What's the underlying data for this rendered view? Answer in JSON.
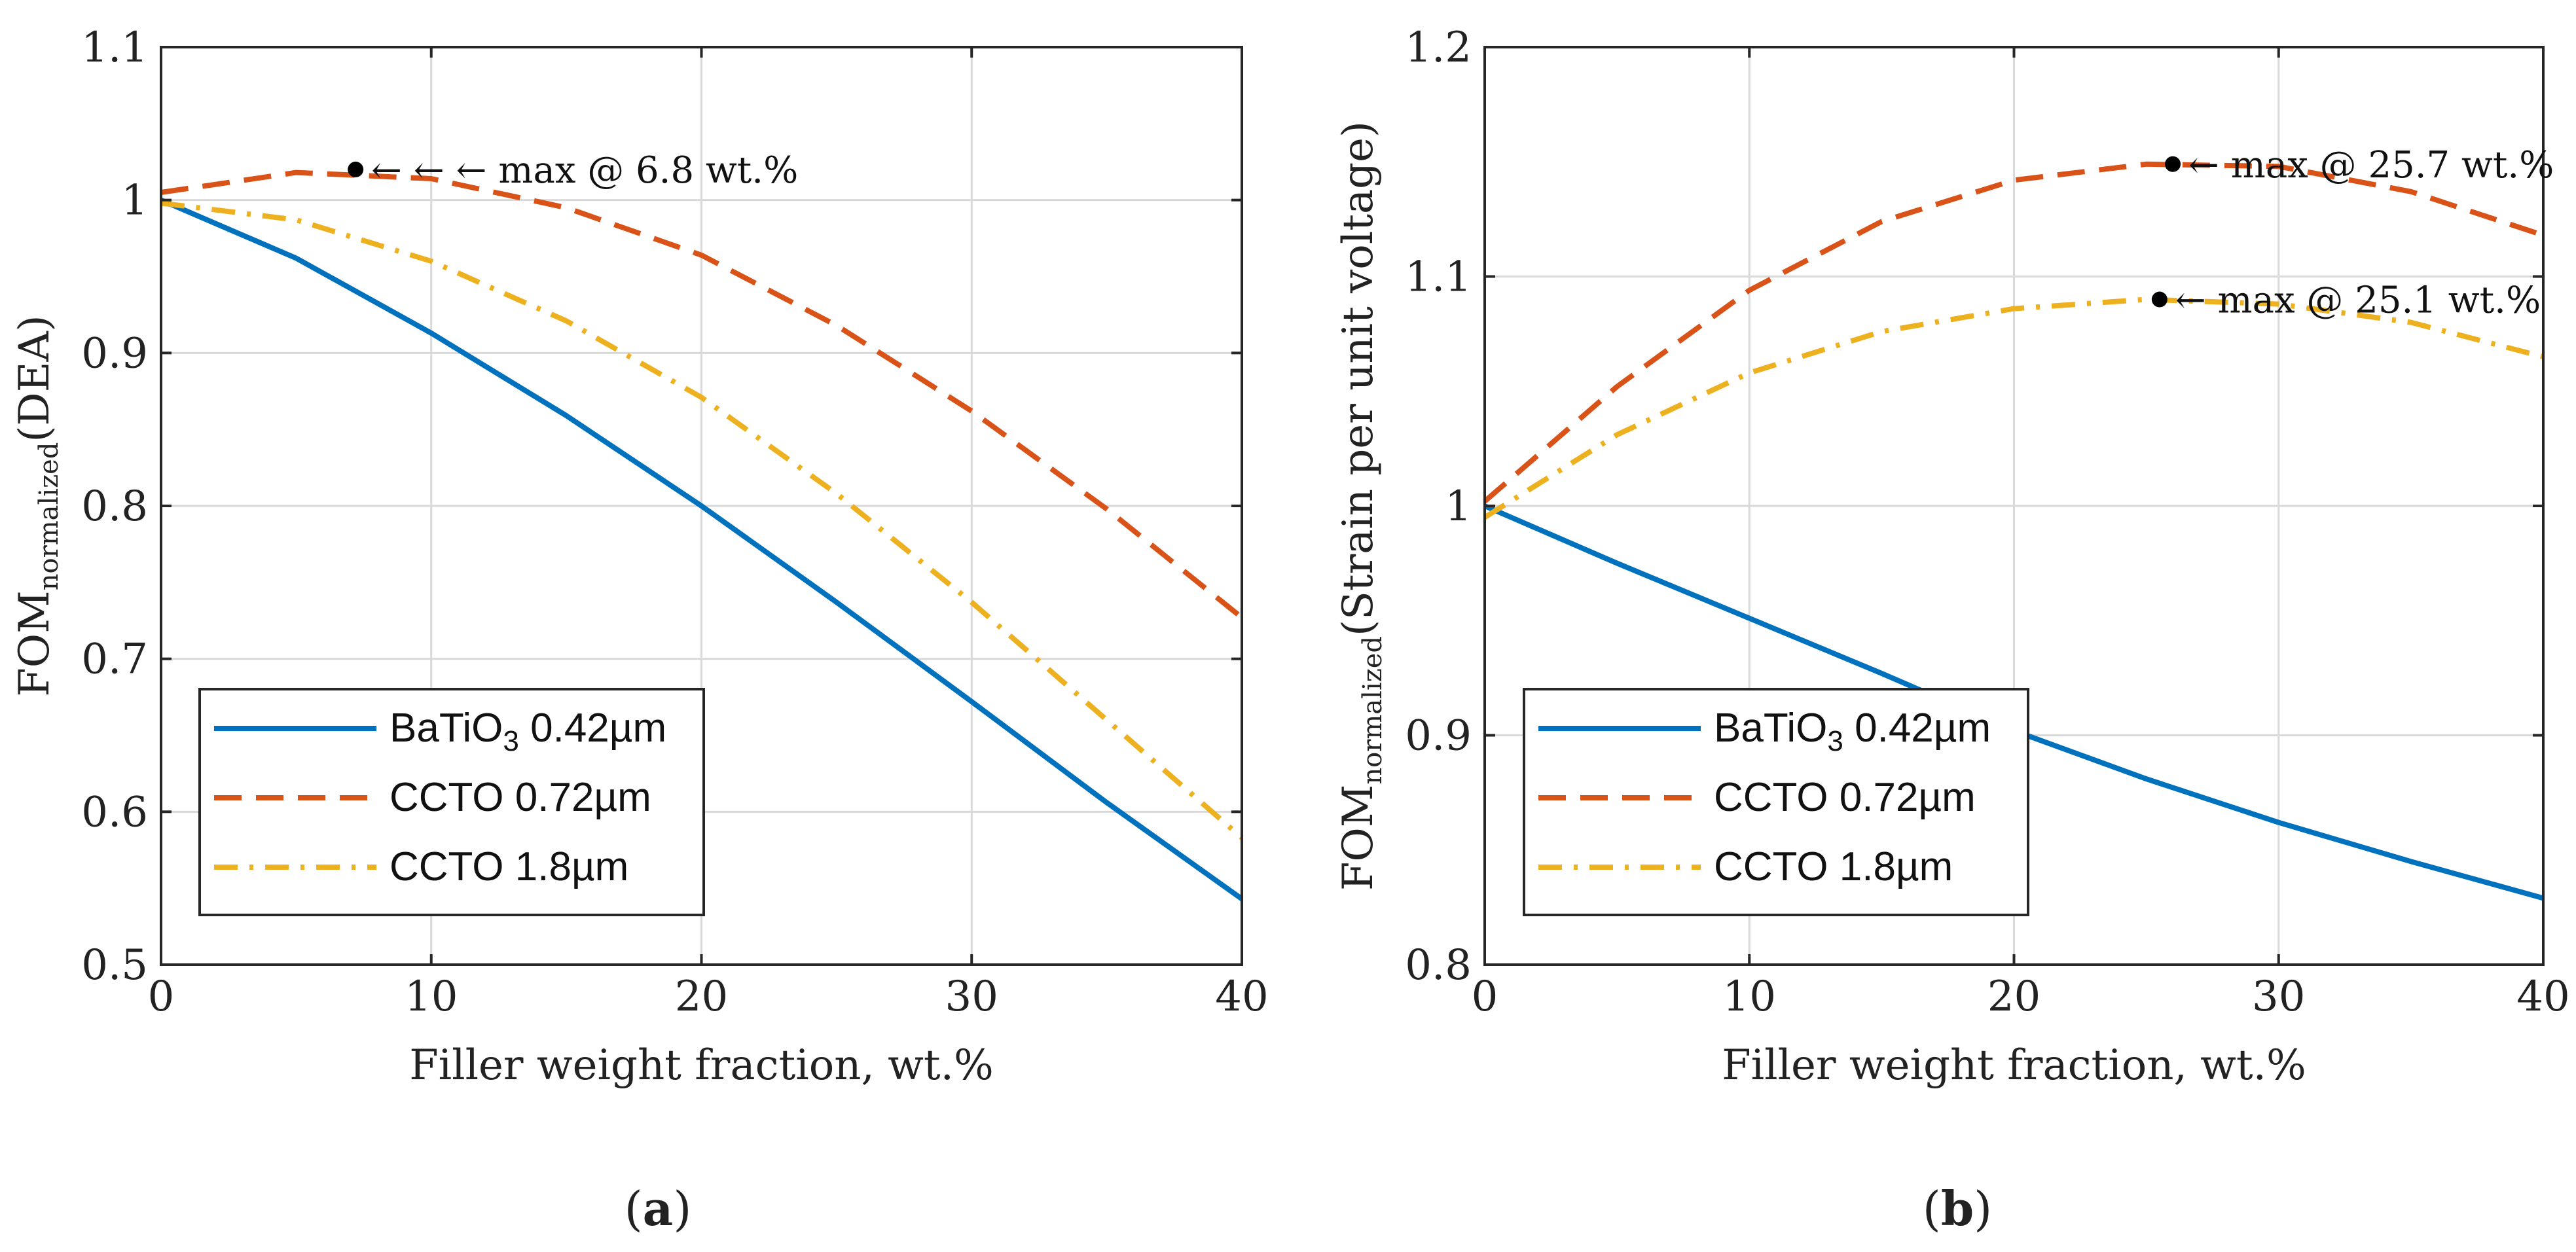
{
  "chart_data": [
    {
      "type": "line",
      "panel_label": "a",
      "xlabel": "Filler weight fraction, wt.%",
      "ylabel_main": "FOM",
      "ylabel_sub": "normalized",
      "ylabel_suffix": "(DEA)",
      "xlim": [
        0,
        40
      ],
      "ylim": [
        0.5,
        1.1
      ],
      "xticks": [
        0,
        10,
        20,
        30,
        40
      ],
      "yticks": [
        0.5,
        0.6,
        0.7,
        0.8,
        0.9,
        1.0,
        1.1
      ],
      "ytick_labels": [
        "0.5",
        "0.6",
        "0.7",
        "0.8",
        "0.9",
        "1",
        "1.1"
      ],
      "grid": true,
      "legend_position": "bottom-left",
      "series": [
        {
          "name": "BaTiO3 0.42µm",
          "label_main": "BaTiO",
          "label_sub": "3",
          "label_rest": " 0.42µm",
          "color": "#0072BD",
          "style": "solid",
          "x": [
            0,
            5,
            10,
            15,
            20,
            25,
            30,
            35,
            40
          ],
          "y": [
            1.0,
            0.962,
            0.913,
            0.859,
            0.8,
            0.737,
            0.672,
            0.606,
            0.543
          ]
        },
        {
          "name": "CCTO 0.72µm",
          "label_main": "CCTO 0.72µm",
          "color": "#D95319",
          "style": "dashed",
          "x": [
            0,
            5,
            10,
            15,
            20,
            25,
            30,
            35,
            40
          ],
          "y": [
            1.005,
            1.018,
            1.014,
            0.995,
            0.964,
            0.918,
            0.862,
            0.798,
            0.727
          ]
        },
        {
          "name": "CCTO 1.8µm",
          "label_main": "CCTO 1.8µm",
          "color": "#EDB120",
          "style": "dashdot",
          "x": [
            0,
            5,
            10,
            15,
            20,
            25,
            30,
            35,
            40
          ],
          "y": [
            0.998,
            0.987,
            0.96,
            0.921,
            0.871,
            0.808,
            0.737,
            0.66,
            0.583
          ]
        }
      ],
      "annotations": [
        {
          "x": 7.2,
          "y": 1.02,
          "text": "← ← ← max @ 6.8 wt.%"
        }
      ]
    },
    {
      "type": "line",
      "panel_label": "b",
      "xlabel": "Filler weight fraction, wt.%",
      "ylabel_main": "FOM",
      "ylabel_sub": "normalized",
      "ylabel_suffix": "(Strain per unit voltage)",
      "xlim": [
        0,
        40
      ],
      "ylim": [
        0.8,
        1.2
      ],
      "xticks": [
        0,
        10,
        20,
        30,
        40
      ],
      "yticks": [
        0.8,
        0.9,
        1.0,
        1.1,
        1.2
      ],
      "ytick_labels": [
        "0.8",
        "0.9",
        "1",
        "1.1",
        "1.2"
      ],
      "grid": true,
      "legend_position": "bottom-left",
      "series": [
        {
          "name": "BaTiO3 0.42µm",
          "label_main": "BaTiO",
          "label_sub": "3",
          "label_rest": " 0.42µm",
          "color": "#0072BD",
          "style": "solid",
          "x": [
            0,
            5,
            10,
            15,
            20,
            25,
            30,
            35,
            40
          ],
          "y": [
            1.0,
            0.975,
            0.951,
            0.927,
            0.902,
            0.881,
            0.862,
            0.845,
            0.829
          ]
        },
        {
          "name": "CCTO 0.72µm",
          "label_main": "CCTO 0.72µm",
          "color": "#D95319",
          "style": "dashed",
          "x": [
            0,
            5,
            10,
            15,
            20,
            25,
            30,
            35,
            40
          ],
          "y": [
            1.002,
            1.052,
            1.094,
            1.124,
            1.142,
            1.149,
            1.148,
            1.137,
            1.118
          ]
        },
        {
          "name": "CCTO 1.8µm",
          "label_main": "CCTO 1.8µm",
          "color": "#EDB120",
          "style": "dashdot",
          "x": [
            0,
            5,
            10,
            15,
            20,
            25,
            30,
            35,
            40
          ],
          "y": [
            0.995,
            1.031,
            1.058,
            1.076,
            1.086,
            1.09,
            1.088,
            1.08,
            1.065
          ]
        }
      ],
      "annotations": [
        {
          "x": 26.0,
          "y": 1.149,
          "text": "← max @ 25.7 wt.%"
        },
        {
          "x": 25.5,
          "y": 1.09,
          "text": "← max @ 25.1 wt.%"
        }
      ]
    }
  ]
}
